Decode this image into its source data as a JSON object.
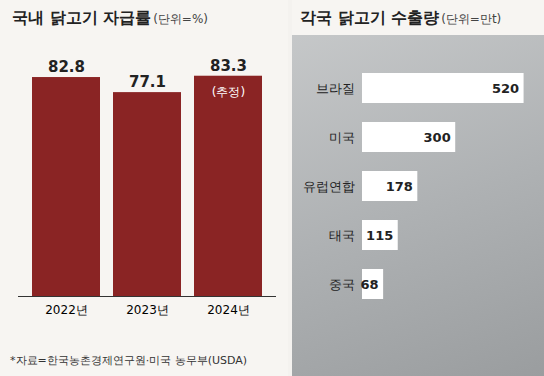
{
  "chart_data": [
    {
      "type": "bar",
      "title": "국내 닭고기 자급률",
      "subtitle": "(단위=%)",
      "categories": [
        "2022년",
        "2023년",
        "2024년"
      ],
      "values": [
        82.8,
        77.1,
        83.3
      ],
      "color": "#8a2424",
      "ylim": [
        0,
        90
      ],
      "yticks": [],
      "tick_labels": "x",
      "data_labels": true,
      "annotations": [
        {
          "category": "2024년",
          "text": "(추정)"
        }
      ],
      "caption": "*자료=한국농촌경제연구원·미국 농무부(USDA)"
    },
    {
      "type": "bar",
      "orientation": "horizontal",
      "title": "각국 닭고기 수출량",
      "subtitle": "(단위=만t)",
      "categories": [
        "브라질",
        "미국",
        "유럽연합",
        "태국",
        "중국"
      ],
      "values": [
        520,
        300,
        178,
        115,
        68
      ],
      "color": "#ffffff",
      "xlim": [
        0,
        560
      ],
      "xticks": [],
      "tick_labels": "y",
      "data_labels": true
    }
  ]
}
